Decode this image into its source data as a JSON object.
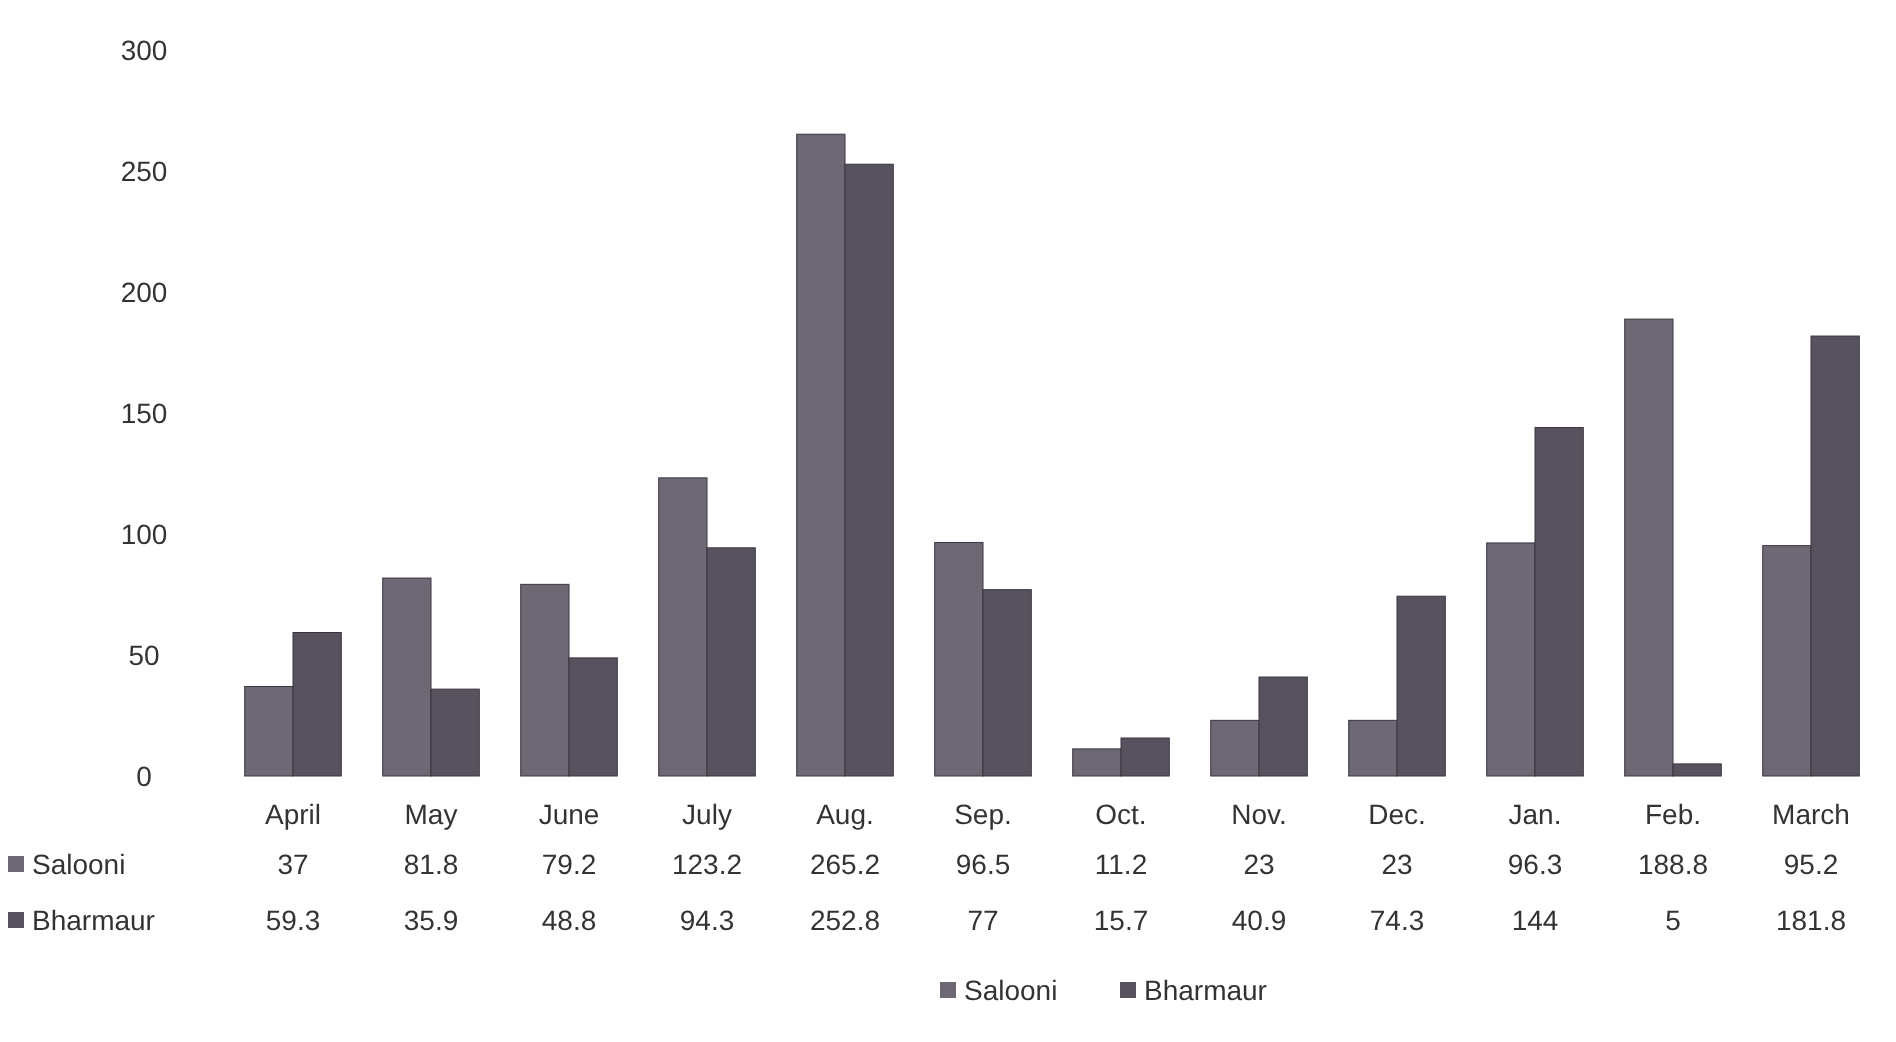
{
  "chart_data": {
    "type": "bar",
    "categories": [
      "April",
      "May",
      "June",
      "July",
      "Aug.",
      "Sep.",
      "Oct.",
      "Nov.",
      "Dec.",
      "Jan.",
      "Feb.",
      "March"
    ],
    "series": [
      {
        "name": "Salooni",
        "color": "#6e6874",
        "values": [
          37,
          81.8,
          79.2,
          123.2,
          265.2,
          96.5,
          11.2,
          23,
          23,
          96.3,
          188.8,
          95.2
        ]
      },
      {
        "name": "Bharmaur",
        "color": "#57525e",
        "values": [
          59.3,
          35.9,
          48.8,
          94.3,
          252.8,
          77,
          15.7,
          40.9,
          74.3,
          144,
          5,
          181.8
        ]
      }
    ],
    "ylim": [
      0,
      300
    ],
    "yticks": [
      0,
      50,
      100,
      150,
      200,
      250,
      300
    ],
    "grid": false,
    "data_labels": true,
    "legend": "bottom"
  }
}
